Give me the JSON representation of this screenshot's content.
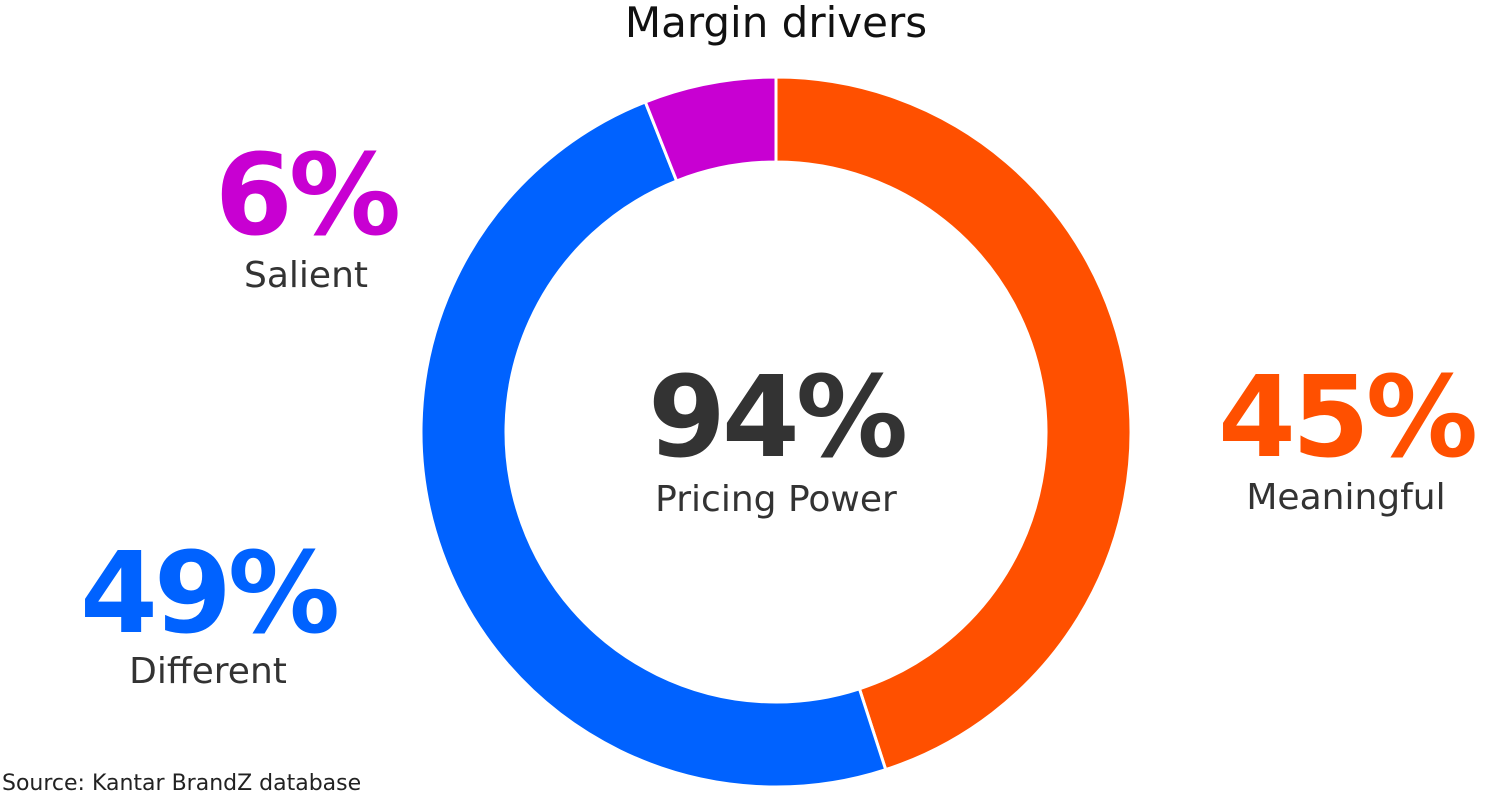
{
  "chart_data": {
    "type": "pie",
    "title": "Margin drivers",
    "center_value": "94%",
    "center_label": "Pricing Power",
    "slices": [
      {
        "name": "Meaningful",
        "value": 45,
        "label": "45%",
        "color": "#FF5000"
      },
      {
        "name": "Different",
        "value": 49,
        "label": "49%",
        "color": "#0062FF"
      },
      {
        "name": "Salient",
        "value": 6,
        "label": "6%",
        "color": "#C800D2"
      }
    ],
    "donut": true,
    "start": "top",
    "direction": "clockwise",
    "source": "Source: Kantar BrandZ database"
  }
}
